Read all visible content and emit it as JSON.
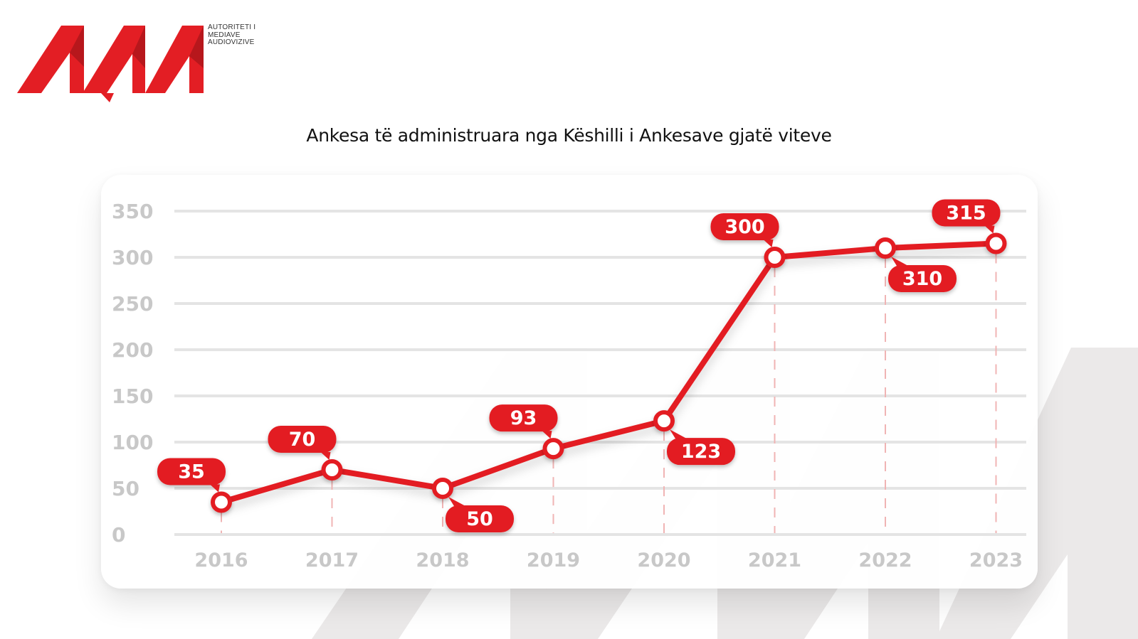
{
  "brand": {
    "logo_text": "AMA",
    "org_lines": [
      "AUTORITETI I",
      "MEDIAVE",
      "AUDIOVIZIVE"
    ],
    "accent_color": "#e31e24",
    "watermark_color": "#e9e7e7"
  },
  "chart_data": {
    "type": "line",
    "title": "Ankesa të administruara nga Këshilli i Ankesave gjatë viteve",
    "xlabel": "",
    "ylabel": "",
    "categories": [
      "2016",
      "2017",
      "2018",
      "2019",
      "2020",
      "2021",
      "2022",
      "2023"
    ],
    "series": [
      {
        "values": [
          35,
          70,
          50,
          93,
          123,
          300,
          310,
          315
        ]
      }
    ],
    "y_ticks": [
      0,
      50,
      100,
      150,
      200,
      250,
      300,
      350
    ],
    "ylim": [
      0,
      350
    ],
    "grid": true,
    "legend": "none",
    "label_placement": [
      "above",
      "above",
      "below",
      "above",
      "below",
      "above",
      "below",
      "above"
    ],
    "colors": {
      "line": "#e31e24",
      "grid": "#e4e4e4",
      "tick_label": "#c8c8c8",
      "guide": "#f0b4b4"
    }
  }
}
